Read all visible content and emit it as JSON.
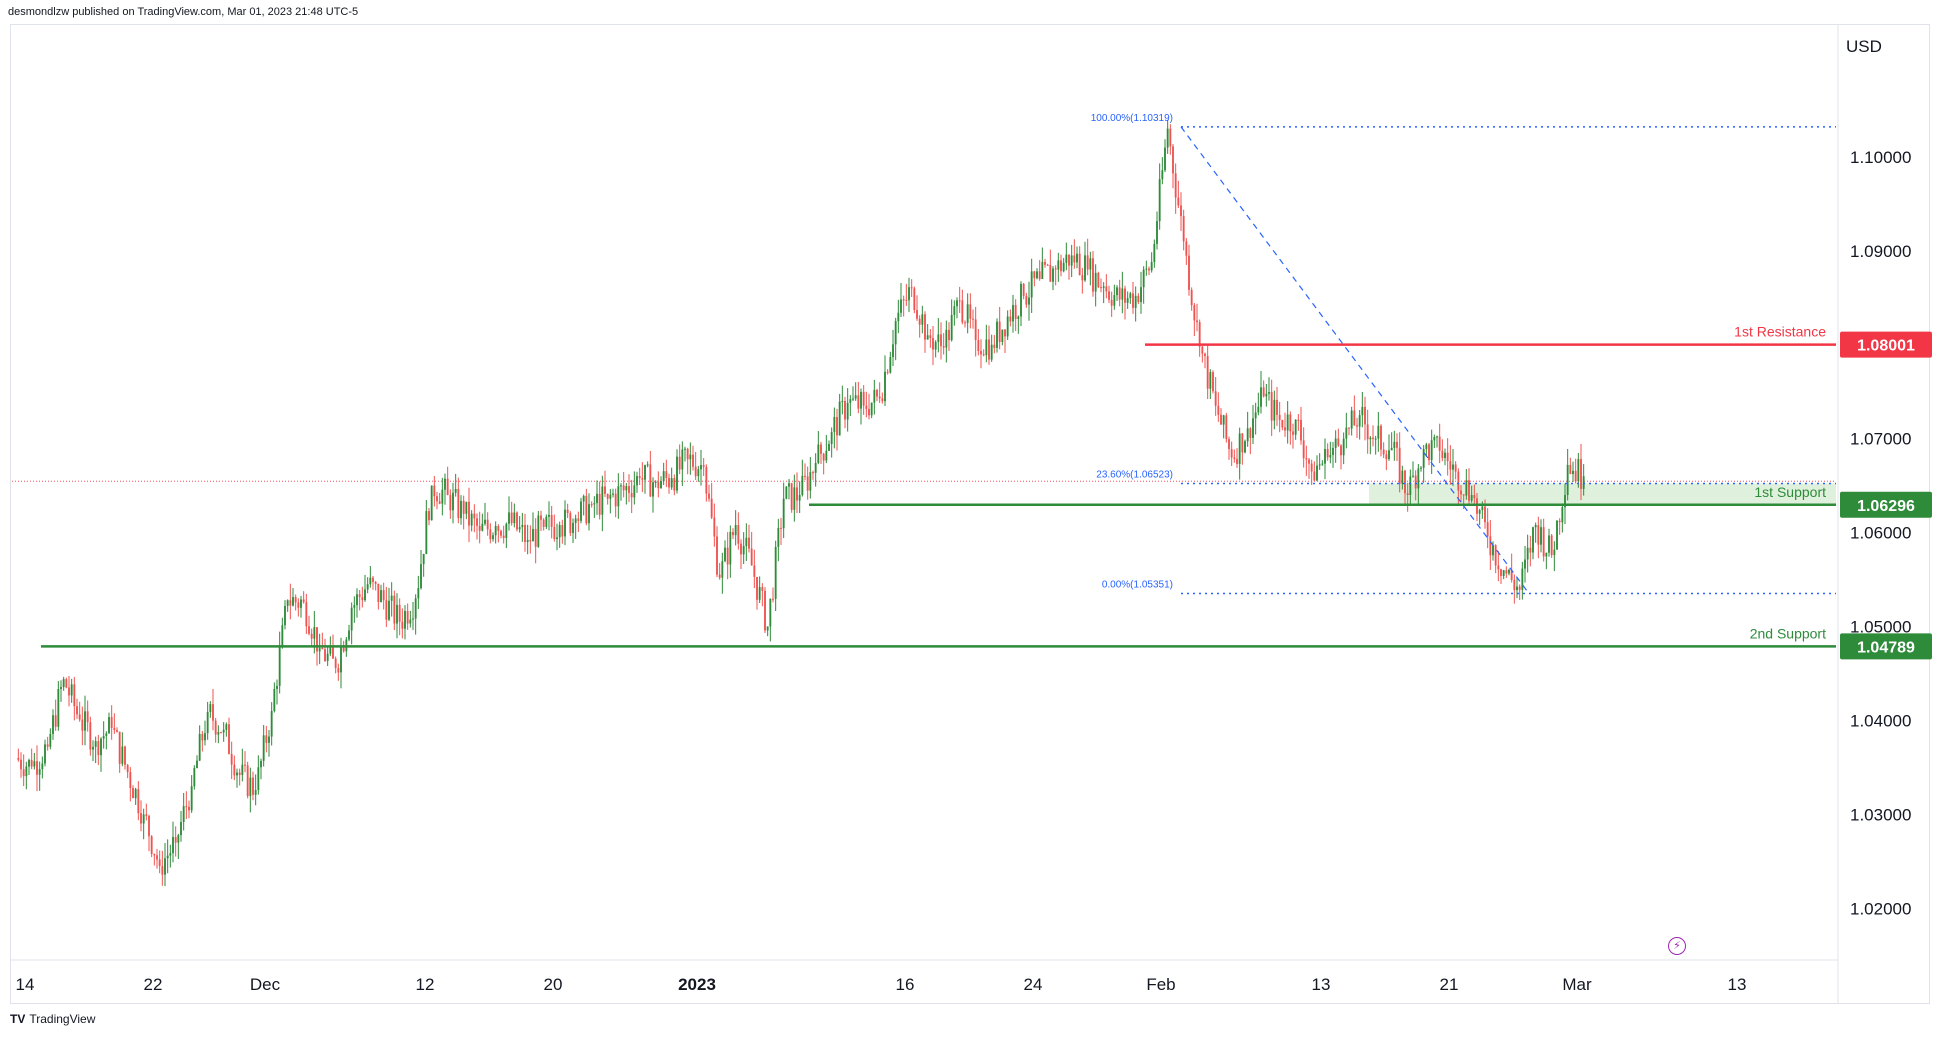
{
  "header": {
    "publisher_line": "desmondlzw published on TradingView.com, Mar 01, 2023 21:48 UTC-5"
  },
  "footer": {
    "brand": "TradingView"
  },
  "colors": {
    "up": "#26a69a",
    "up_candle": "#2e8b3a",
    "down": "#ef5350",
    "resistance": "#f23645",
    "support": "#2e8b3a",
    "fib": "#2962ff",
    "zone": "#d9eed6",
    "price_dot": "#f23645"
  },
  "chart_data": {
    "type": "candlestick",
    "currency_label": "USD",
    "ylim": [
      1.0145,
      1.1135
    ],
    "y_ticks": [
      1.02,
      1.03,
      1.04,
      1.05,
      1.06,
      1.07,
      1.09,
      1.1
    ],
    "y_tick_labels": [
      "1.02000",
      "1.03000",
      "1.04000",
      "1.05000",
      "1.06000",
      "1.07000",
      "1.09000",
      "1.10000"
    ],
    "x_ticks": [
      {
        "label": "14",
        "bar": 0
      },
      {
        "label": "22",
        "bar": 8
      },
      {
        "label": "Dec",
        "bar": 15
      },
      {
        "label": "12",
        "bar": 25
      },
      {
        "label": "20",
        "bar": 33
      },
      {
        "label": "2023",
        "bar": 42,
        "bold": true
      },
      {
        "label": "16",
        "bar": 55
      },
      {
        "label": "24",
        "bar": 63
      },
      {
        "label": "Feb",
        "bar": 71
      },
      {
        "label": "13",
        "bar": 81
      },
      {
        "label": "21",
        "bar": 89
      },
      {
        "label": "Mar",
        "bar": 97
      },
      {
        "label": "13",
        "bar": 107
      }
    ],
    "daily_closes": [
      1.0351,
      1.0372,
      1.0444,
      1.0401,
      1.0378,
      1.0392,
      1.0345,
      1.03,
      1.0245,
      1.027,
      1.033,
      1.0409,
      1.039,
      1.0342,
      1.0326,
      1.041,
      1.0528,
      1.0526,
      1.0477,
      1.0456,
      1.052,
      1.0545,
      1.0528,
      1.0505,
      1.053,
      1.065,
      1.064,
      1.062,
      1.0602,
      1.0607,
      1.061,
      1.0592,
      1.0606,
      1.0608,
      1.0615,
      1.063,
      1.0636,
      1.0645,
      1.0658,
      1.0654,
      1.0658,
      1.0678,
      1.067,
      1.0552,
      1.0608,
      1.0565,
      1.05,
      1.0636,
      1.064,
      1.0674,
      1.0707,
      1.0738,
      1.0735,
      1.0743,
      1.0825,
      1.086,
      1.081,
      1.0797,
      1.0847,
      1.0805,
      1.08,
      1.083,
      1.0852,
      1.087,
      1.088,
      1.0895,
      1.088,
      1.0862,
      1.0848,
      1.0852,
      1.0888,
      1.103,
      1.091,
      1.0798,
      1.0735,
      1.068,
      1.0711,
      1.0745,
      1.072,
      1.072,
      1.0665,
      1.068,
      1.07,
      1.0725,
      1.07,
      1.069,
      1.064,
      1.0689,
      1.0687,
      1.0665,
      1.064,
      1.0596,
      1.056,
      1.0539,
      1.0608,
      1.0576,
      1.0672,
      1.066
    ],
    "daily_opens_first": 1.036,
    "levels": [
      {
        "name": "1st Resistance",
        "value": 1.08001,
        "label": "1.08001",
        "kind": "resistance",
        "start_bar": 70
      },
      {
        "name": "1st Support",
        "value": 1.06296,
        "label": "1.06296",
        "kind": "support",
        "start_bar": 49
      },
      {
        "name": "2nd Support",
        "value": 1.04789,
        "label": "1.04789",
        "kind": "support",
        "start_bar": 1
      }
    ],
    "support_zone": {
      "from": 1.06296,
      "to": 1.06523,
      "start_bar": 84
    },
    "fibonacci": [
      {
        "label": "100.00%(1.10319)",
        "value": 1.10319
      },
      {
        "label": "23.60%(1.06523)",
        "value": 1.06523
      },
      {
        "label": "0.00%(1.05351)",
        "value": 1.05351
      }
    ],
    "fib_anchor_start_bar": 72,
    "fib_anchor_end_bar": 94,
    "last_price": 1.066
  }
}
